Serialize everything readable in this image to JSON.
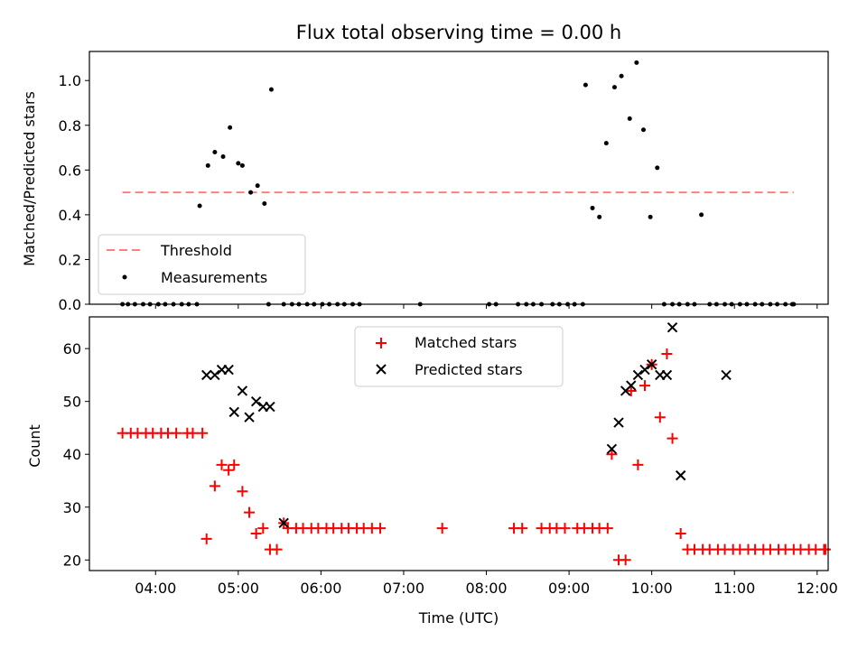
{
  "chart_data": [
    {
      "type": "scatter",
      "title": "Flux total observing time = 0.00 h",
      "xlabel": "",
      "ylabel": "Matched/Predicted stars",
      "xlim": [
        "03:12",
        "12:08"
      ],
      "ylim": [
        0,
        1.13
      ],
      "x_ticks": [
        "04:00",
        "05:00",
        "06:00",
        "07:00",
        "08:00",
        "09:00",
        "10:00",
        "11:00",
        "12:00"
      ],
      "y_ticks": [
        "0.0",
        "0.2",
        "0.4",
        "0.6",
        "0.8",
        "1.0"
      ],
      "grid": false,
      "legend_position": "lower-left",
      "series": [
        {
          "name": "Threshold",
          "style": "dashed-line",
          "color": "#ff7f7f",
          "points": [
            [
              "03:36",
              0.5
            ],
            [
              "11:43",
              0.5
            ]
          ]
        },
        {
          "name": "Measurements",
          "style": "dot",
          "color": "#000000",
          "points": [
            [
              "03:36",
              0
            ],
            [
              "03:40",
              0
            ],
            [
              "03:45",
              0
            ],
            [
              "03:51",
              0
            ],
            [
              "03:56",
              0
            ],
            [
              "04:02",
              0
            ],
            [
              "04:07",
              0
            ],
            [
              "04:13",
              0
            ],
            [
              "04:19",
              0
            ],
            [
              "04:24",
              0
            ],
            [
              "04:30",
              0
            ],
            [
              "04:32",
              0.44
            ],
            [
              "04:38",
              0.62
            ],
            [
              "04:43",
              0.68
            ],
            [
              "04:49",
              0.66
            ],
            [
              "04:54",
              0.79
            ],
            [
              "05:00",
              0.63
            ],
            [
              "05:03",
              0.62
            ],
            [
              "05:09",
              0.5
            ],
            [
              "05:14",
              0.53
            ],
            [
              "05:19",
              0.45
            ],
            [
              "05:24",
              0.96
            ],
            [
              "05:22",
              0
            ],
            [
              "05:33",
              0
            ],
            [
              "05:39",
              0
            ],
            [
              "05:44",
              0
            ],
            [
              "05:50",
              0
            ],
            [
              "05:55",
              0
            ],
            [
              "06:01",
              0
            ],
            [
              "06:06",
              0
            ],
            [
              "06:12",
              0
            ],
            [
              "06:17",
              0
            ],
            [
              "06:23",
              0
            ],
            [
              "06:28",
              0
            ],
            [
              "07:12",
              0
            ],
            [
              "08:02",
              0
            ],
            [
              "08:07",
              0
            ],
            [
              "08:23",
              0
            ],
            [
              "08:29",
              0
            ],
            [
              "08:34",
              0
            ],
            [
              "08:40",
              0
            ],
            [
              "08:48",
              0
            ],
            [
              "08:53",
              0
            ],
            [
              "08:59",
              0
            ],
            [
              "09:04",
              0
            ],
            [
              "09:10",
              0
            ],
            [
              "09:12",
              0.98
            ],
            [
              "09:17",
              0.43
            ],
            [
              "09:22",
              0.39
            ],
            [
              "09:27",
              0.72
            ],
            [
              "09:33",
              0.97
            ],
            [
              "09:38",
              1.02
            ],
            [
              "09:44",
              0.83
            ],
            [
              "09:49",
              1.08
            ],
            [
              "09:54",
              0.78
            ],
            [
              "09:59",
              0.39
            ],
            [
              "10:04",
              0.61
            ],
            [
              "10:09",
              0
            ],
            [
              "10:15",
              0
            ],
            [
              "10:20",
              0
            ],
            [
              "10:26",
              0
            ],
            [
              "10:31",
              0
            ],
            [
              "10:36",
              0.4
            ],
            [
              "10:42",
              0
            ],
            [
              "10:47",
              0
            ],
            [
              "10:53",
              0
            ],
            [
              "10:58",
              0
            ],
            [
              "11:04",
              0
            ],
            [
              "11:09",
              0
            ],
            [
              "11:15",
              0
            ],
            [
              "11:20",
              0
            ],
            [
              "11:26",
              0
            ],
            [
              "11:31",
              0
            ],
            [
              "11:37",
              0
            ],
            [
              "11:42",
              0
            ],
            [
              "11:43",
              0
            ]
          ]
        }
      ]
    },
    {
      "type": "scatter",
      "title": "",
      "xlabel": "Time (UTC)",
      "ylabel": "Count",
      "xlim": [
        "03:12",
        "12:08"
      ],
      "ylim": [
        18,
        66
      ],
      "x_ticks": [
        "04:00",
        "05:00",
        "06:00",
        "07:00",
        "08:00",
        "09:00",
        "10:00",
        "11:00",
        "12:00"
      ],
      "y_ticks": [
        "20",
        "30",
        "40",
        "50",
        "60"
      ],
      "grid": false,
      "legend_position": "upper-center",
      "series": [
        {
          "name": "Matched stars",
          "marker": "plus",
          "color": "#ff0000",
          "points": [
            [
              "03:36",
              44
            ],
            [
              "03:42",
              44
            ],
            [
              "03:47",
              44
            ],
            [
              "03:53",
              44
            ],
            [
              "03:58",
              44
            ],
            [
              "04:04",
              44
            ],
            [
              "04:09",
              44
            ],
            [
              "04:15",
              44
            ],
            [
              "04:23",
              44
            ],
            [
              "04:27",
              44
            ],
            [
              "04:34",
              44
            ],
            [
              "04:37",
              24
            ],
            [
              "04:43",
              34
            ],
            [
              "04:48",
              38
            ],
            [
              "04:53",
              37
            ],
            [
              "04:57",
              38
            ],
            [
              "05:03",
              33
            ],
            [
              "05:08",
              29
            ],
            [
              "05:13",
              25
            ],
            [
              "05:18",
              26
            ],
            [
              "05:23",
              22
            ],
            [
              "05:28",
              22
            ],
            [
              "05:33",
              27
            ],
            [
              "05:36",
              26
            ],
            [
              "05:42",
              26
            ],
            [
              "05:47",
              26
            ],
            [
              "05:53",
              26
            ],
            [
              "05:58",
              26
            ],
            [
              "06:04",
              26
            ],
            [
              "06:09",
              26
            ],
            [
              "06:15",
              26
            ],
            [
              "06:20",
              26
            ],
            [
              "06:26",
              26
            ],
            [
              "06:31",
              26
            ],
            [
              "06:37",
              26
            ],
            [
              "06:43",
              26
            ],
            [
              "07:28",
              26
            ],
            [
              "08:20",
              26
            ],
            [
              "08:26",
              26
            ],
            [
              "08:40",
              26
            ],
            [
              "08:46",
              26
            ],
            [
              "08:51",
              26
            ],
            [
              "08:57",
              26
            ],
            [
              "09:06",
              26
            ],
            [
              "09:11",
              26
            ],
            [
              "09:17",
              26
            ],
            [
              "09:22",
              26
            ],
            [
              "09:28",
              26
            ],
            [
              "09:31",
              40
            ],
            [
              "09:36",
              20
            ],
            [
              "09:41",
              20
            ],
            [
              "09:45",
              52
            ],
            [
              "09:50",
              38
            ],
            [
              "09:55",
              53
            ],
            [
              "10:00",
              57
            ],
            [
              "10:06",
              47
            ],
            [
              "10:11",
              59
            ],
            [
              "10:15",
              43
            ],
            [
              "10:21",
              25
            ],
            [
              "10:26",
              22
            ],
            [
              "10:31",
              22
            ],
            [
              "10:37",
              22
            ],
            [
              "10:42",
              22
            ],
            [
              "10:48",
              22
            ],
            [
              "10:53",
              22
            ],
            [
              "10:59",
              22
            ],
            [
              "11:04",
              22
            ],
            [
              "11:10",
              22
            ],
            [
              "11:15",
              22
            ],
            [
              "11:21",
              22
            ],
            [
              "11:26",
              22
            ],
            [
              "11:32",
              22
            ],
            [
              "11:37",
              22
            ],
            [
              "11:43",
              22
            ],
            [
              "11:48",
              22
            ],
            [
              "11:54",
              22
            ],
            [
              "11:59",
              22
            ],
            [
              "12:05",
              22
            ],
            [
              "12:06",
              22
            ]
          ]
        },
        {
          "name": "Predicted stars",
          "marker": "x",
          "color": "#000000",
          "points": [
            [
              "04:37",
              55
            ],
            [
              "04:43",
              55
            ],
            [
              "04:48",
              56
            ],
            [
              "04:53",
              56
            ],
            [
              "04:57",
              48
            ],
            [
              "05:03",
              52
            ],
            [
              "05:08",
              47
            ],
            [
              "05:13",
              50
            ],
            [
              "05:18",
              49
            ],
            [
              "05:23",
              49
            ],
            [
              "05:33",
              27
            ],
            [
              "09:31",
              41
            ],
            [
              "09:36",
              46
            ],
            [
              "09:41",
              52
            ],
            [
              "09:45",
              53
            ],
            [
              "09:50",
              55
            ],
            [
              "09:55",
              56
            ],
            [
              "10:00",
              57
            ],
            [
              "10:06",
              55
            ],
            [
              "10:11",
              55
            ],
            [
              "10:15",
              64
            ],
            [
              "10:21",
              36
            ],
            [
              "10:54",
              55
            ]
          ]
        }
      ]
    }
  ]
}
